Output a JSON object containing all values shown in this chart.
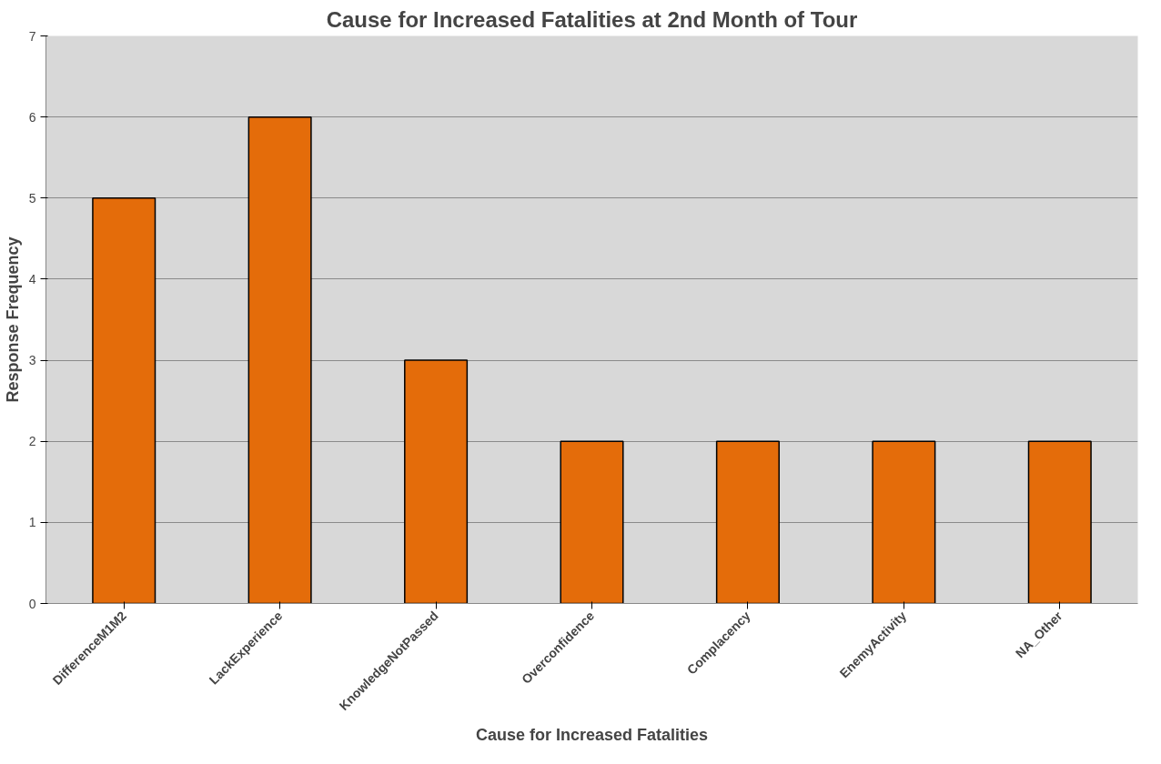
{
  "chart_data": {
    "type": "bar",
    "title": "Cause for Increased Fatalities at 2nd Month of Tour",
    "xlabel": "Cause for Increased Fatalities",
    "ylabel": "Response Frequency",
    "categories": [
      "DifferenceM1M2",
      "LackExperience",
      "KnowledgeNotPassed",
      "Overconfidence",
      "Complacency",
      "EnemyActivity",
      "NA_Other"
    ],
    "values": [
      5,
      6,
      3,
      2,
      2,
      2,
      2
    ],
    "color": "#e46c0a",
    "ylim": [
      0,
      7
    ],
    "yticks": [
      0,
      1,
      2,
      3,
      4,
      5,
      6,
      7
    ],
    "grid": "y"
  }
}
